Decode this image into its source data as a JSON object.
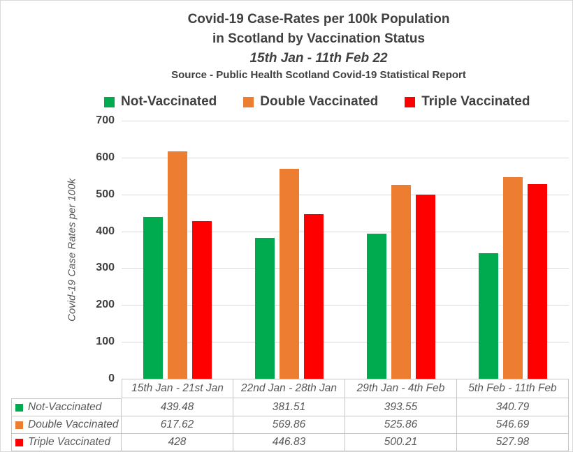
{
  "title": {
    "line1": "Covid-19 Case-Rates per 100k Population",
    "line2": "in Scotland by Vaccination Status",
    "line3": "15th Jan - 11th Feb 22",
    "source": "Source - Public Health Scotland Covid-19 Statistical Report"
  },
  "y_axis": {
    "title": "Covid-19 Case Rates per 100k",
    "ticks": [
      700,
      600,
      500,
      400,
      300,
      200,
      100,
      0
    ]
  },
  "colors": {
    "not_vaccinated": "#00AB50",
    "double_vaccinated": "#ED7D31",
    "triple_vaccinated": "#FF0000",
    "gridline": "#d9d9d9",
    "table_border": "#c6c6c6",
    "text_dark": "#404040",
    "text_gray": "#595959"
  },
  "chart_data": {
    "type": "bar",
    "title": "Covid-19 Case-Rates per 100k Population in Scotland by Vaccination Status",
    "subtitle": "15th Jan - 11th Feb 22",
    "source": "Source - Public Health Scotland Covid-19 Statistical Report",
    "categories": [
      "15th Jan - 21st Jan",
      "22nd Jan - 28th Jan",
      "29th Jan - 4th Feb",
      "5th Feb - 11th Feb"
    ],
    "series": [
      {
        "name": "Not-Vaccinated",
        "color": "#00AB50",
        "values": [
          439.48,
          381.51,
          393.55,
          340.79
        ],
        "display_values": [
          "439.48",
          "381.51",
          "393.55",
          "340.79"
        ]
      },
      {
        "name": "Double Vaccinated",
        "color": "#ED7D31",
        "values": [
          617.62,
          569.86,
          525.86,
          546.69
        ],
        "display_values": [
          "617.62",
          "569.86",
          "525.86",
          "546.69"
        ]
      },
      {
        "name": "Triple Vaccinated",
        "color": "#FF0000",
        "values": [
          428,
          446.83,
          500.21,
          527.98
        ],
        "display_values": [
          "428",
          "446.83",
          "500.21",
          "527.98"
        ]
      }
    ],
    "xlabel": "",
    "ylabel": "Covid-19 Case Rates per 100k",
    "ylim": [
      0,
      700
    ],
    "ytick_step": 100,
    "grid": true,
    "legend_position": "top",
    "data_table_shown": true
  }
}
